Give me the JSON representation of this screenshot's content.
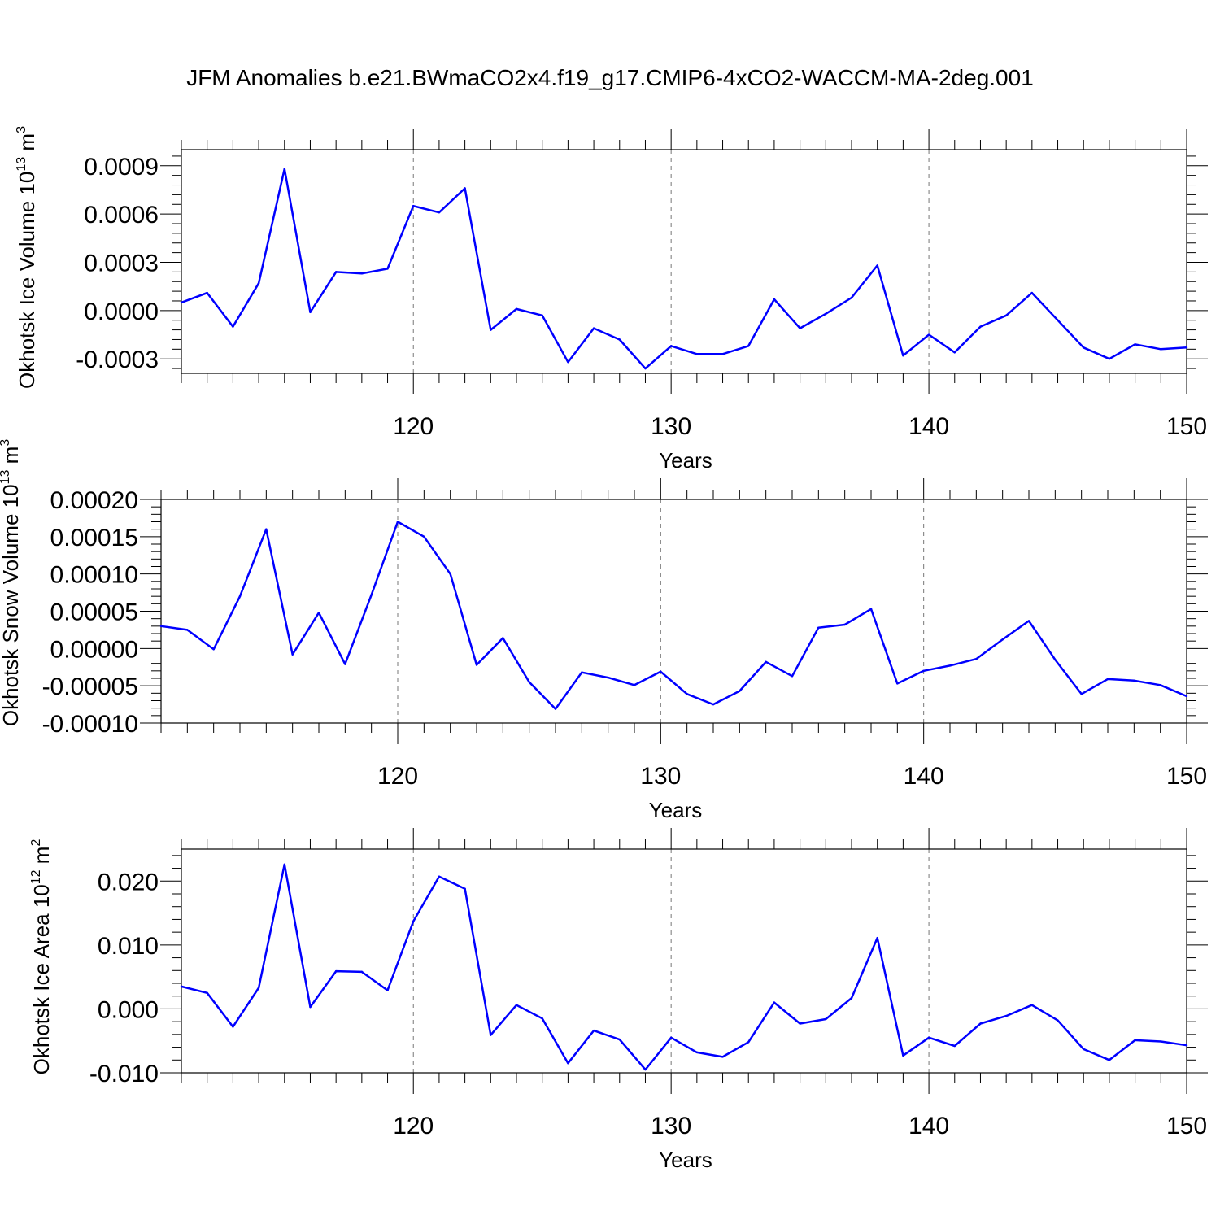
{
  "title": "JFM Anomalies b.e21.BWmaCO2x4.f19_g17.CMIP6-4xCO2-WACCM-MA-2deg.001",
  "line_color": "#0000ff",
  "chart_data": [
    {
      "type": "line",
      "xlabel": "Years",
      "ylabel": "Okhotsk Ice Volume 10",
      "ylabel_exp": "13",
      "ylabel_unit": " m",
      "ylabel_unit_exp": "3",
      "xlim": [
        111,
        150
      ],
      "ylim": [
        -0.00039,
        0.001
      ],
      "xticks": [
        120,
        130,
        140,
        150
      ],
      "yticks": [
        -0.0003,
        0.0,
        0.0003,
        0.0006,
        0.0009
      ],
      "ytick_labels": [
        "-0.0003",
        "0.0000",
        "0.0003",
        "0.0006",
        "0.0009"
      ],
      "x": [
        111,
        112,
        113,
        114,
        115,
        116,
        117,
        118,
        119,
        120,
        121,
        122,
        123,
        124,
        125,
        126,
        127,
        128,
        129,
        130,
        131,
        132,
        133,
        134,
        135,
        136,
        137,
        138,
        139,
        140,
        141,
        142,
        143,
        144,
        145,
        146,
        147,
        148,
        149,
        150
      ],
      "series": [
        {
          "values": [
            5e-05,
            0.00011,
            -0.0001,
            0.00017,
            0.00088,
            -1e-05,
            0.00024,
            0.00023,
            0.00026,
            0.00065,
            0.00061,
            0.00076,
            -0.00012,
            1e-05,
            -3e-05,
            -0.00032,
            -0.00011,
            -0.00018,
            -0.00036,
            -0.00022,
            -0.00027,
            -0.00027,
            -0.00022,
            7e-05,
            -0.00011,
            -2e-05,
            8e-05,
            0.00028,
            -0.00028,
            -0.00015,
            -0.00026,
            -0.0001,
            -3e-05,
            0.00011,
            -6e-05,
            -0.00023,
            -0.0003,
            -0.00021,
            -0.00024,
            -0.00023
          ]
        }
      ]
    },
    {
      "type": "line",
      "xlabel": "Years",
      "ylabel": "Okhotsk Snow Volume 10",
      "ylabel_exp": "13",
      "ylabel_unit": " m",
      "ylabel_unit_exp": "3",
      "xlim": [
        111,
        150
      ],
      "ylim": [
        -0.0001,
        0.0002
      ],
      "xticks": [
        120,
        130,
        140,
        150
      ],
      "yticks": [
        -0.0001,
        -5e-05,
        0.0,
        5e-05,
        0.0001,
        0.00015,
        0.0002
      ],
      "ytick_labels": [
        "-0.00010",
        "-0.00005",
        "0.00000",
        "0.00005",
        "0.00010",
        "0.00015",
        "0.00020"
      ],
      "x": [
        111,
        112,
        113,
        114,
        115,
        116,
        117,
        118,
        119,
        120,
        121,
        122,
        123,
        124,
        125,
        126,
        127,
        128,
        129,
        130,
        131,
        132,
        133,
        134,
        135,
        136,
        137,
        138,
        139,
        140,
        141,
        142,
        143,
        144,
        145,
        146,
        147,
        148,
        149,
        150
      ],
      "series": [
        {
          "values": [
            3e-05,
            2.5e-05,
            -1e-06,
            7e-05,
            0.00016,
            -8e-06,
            4.8e-05,
            -2.1e-05,
            7.2e-05,
            0.00017,
            0.00015,
            0.0001,
            -2.2e-05,
            1.4e-05,
            -4.5e-05,
            -8.1e-05,
            -3.2e-05,
            -3.9e-05,
            -4.9e-05,
            -3.1e-05,
            -6.1e-05,
            -7.5e-05,
            -5.7e-05,
            -1.8e-05,
            -3.7e-05,
            2.8e-05,
            3.2e-05,
            5.3e-05,
            -4.7e-05,
            -3e-05,
            -2.3e-05,
            -1.4e-05,
            1.2e-05,
            3.7e-05,
            -1.5e-05,
            -6.1e-05,
            -4.1e-05,
            -4.3e-05,
            -4.9e-05,
            -6.4e-05
          ]
        }
      ]
    },
    {
      "type": "line",
      "xlabel": "Years",
      "ylabel": "Okhotsk Ice Area 10",
      "ylabel_exp": "12",
      "ylabel_unit": " m",
      "ylabel_unit_exp": "2",
      "xlim": [
        111,
        150
      ],
      "ylim": [
        -0.01,
        0.025
      ],
      "xticks": [
        120,
        130,
        140,
        150
      ],
      "yticks": [
        -0.01,
        0.0,
        0.01,
        0.02
      ],
      "ytick_labels": [
        "-0.010",
        "0.000",
        "0.010",
        "0.020"
      ],
      "x": [
        111,
        112,
        113,
        114,
        115,
        116,
        117,
        118,
        119,
        120,
        121,
        122,
        123,
        124,
        125,
        126,
        127,
        128,
        129,
        130,
        131,
        132,
        133,
        134,
        135,
        136,
        137,
        138,
        139,
        140,
        141,
        142,
        143,
        144,
        145,
        146,
        147,
        148,
        149,
        150
      ],
      "series": [
        {
          "values": [
            0.0035,
            0.0025,
            -0.0028,
            0.0033,
            0.0226,
            0.0003,
            0.0059,
            0.0058,
            0.0029,
            0.0137,
            0.0207,
            0.0188,
            -0.0041,
            0.0006,
            -0.0015,
            -0.0085,
            -0.0034,
            -0.0048,
            -0.0095,
            -0.0045,
            -0.0068,
            -0.0075,
            -0.0052,
            0.001,
            -0.0023,
            -0.0016,
            0.0017,
            0.0111,
            -0.0073,
            -0.0045,
            -0.0058,
            -0.0023,
            -0.0011,
            0.0006,
            -0.0018,
            -0.0063,
            -0.008,
            -0.0049,
            -0.0051,
            -0.0057
          ]
        }
      ]
    }
  ]
}
